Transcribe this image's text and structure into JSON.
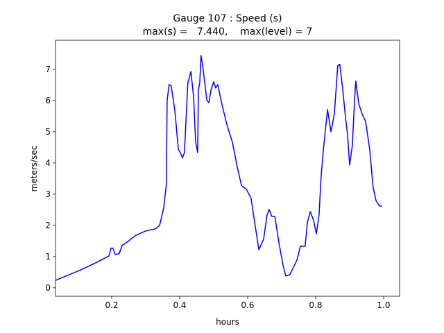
{
  "chart_data": {
    "type": "line",
    "title": "Gauge 107 : Speed (s)",
    "subtitle": "max(s) =   7.440,    max(level) = 7",
    "x_label": "hours",
    "y_label": "meters/sec",
    "x": [
      0.035,
      0.106,
      0.157,
      0.192,
      0.198,
      0.204,
      0.21,
      0.222,
      0.231,
      0.249,
      0.269,
      0.3,
      0.329,
      0.341,
      0.353,
      0.361,
      0.363,
      0.369,
      0.375,
      0.386,
      0.396,
      0.402,
      0.408,
      0.414,
      0.424,
      0.433,
      0.441,
      0.447,
      0.453,
      0.455,
      0.459,
      0.463,
      0.469,
      0.48,
      0.486,
      0.492,
      0.5,
      0.506,
      0.512,
      0.524,
      0.539,
      0.555,
      0.569,
      0.582,
      0.596,
      0.61,
      0.622,
      0.633,
      0.647,
      0.657,
      0.663,
      0.671,
      0.68,
      0.692,
      0.704,
      0.712,
      0.724,
      0.745,
      0.755,
      0.769,
      0.776,
      0.784,
      0.794,
      0.802,
      0.81,
      0.816,
      0.824,
      0.835,
      0.845,
      0.855,
      0.865,
      0.871,
      0.88,
      0.888,
      0.894,
      0.9,
      0.908,
      0.914,
      0.918,
      0.927,
      0.937,
      0.947,
      0.959,
      0.969,
      0.978,
      0.988,
      0.996
    ],
    "series": [
      {
        "name": "speed",
        "color": "#0000ff",
        "values": [
          0.24,
          0.56,
          0.82,
          1.02,
          1.27,
          1.27,
          1.07,
          1.09,
          1.36,
          1.49,
          1.67,
          1.82,
          1.89,
          2.0,
          2.56,
          3.33,
          6.0,
          6.51,
          6.47,
          5.67,
          4.44,
          4.33,
          4.16,
          4.33,
          6.56,
          6.93,
          6.11,
          4.67,
          4.33,
          6.33,
          6.56,
          7.44,
          7.0,
          6.0,
          5.93,
          6.33,
          6.6,
          6.4,
          6.51,
          5.89,
          5.22,
          4.67,
          3.89,
          3.27,
          3.16,
          2.87,
          2.0,
          1.22,
          1.56,
          2.33,
          2.51,
          2.29,
          2.29,
          1.44,
          0.73,
          0.38,
          0.42,
          0.89,
          1.33,
          1.33,
          2.11,
          2.44,
          2.16,
          1.73,
          2.33,
          3.56,
          4.56,
          5.71,
          5.0,
          5.56,
          7.11,
          7.16,
          6.33,
          5.44,
          4.89,
          3.93,
          4.56,
          5.89,
          6.62,
          5.89,
          5.56,
          5.33,
          4.44,
          3.22,
          2.78,
          2.62,
          2.62
        ]
      }
    ],
    "xlim": [
      0.0347,
      1.047
    ],
    "ylim": [
      -0.27,
      7.93
    ],
    "xticks": [
      {
        "value": 0.2,
        "label": "0.2"
      },
      {
        "value": 0.4,
        "label": "0.4"
      },
      {
        "value": 0.6,
        "label": "0.6"
      },
      {
        "value": 0.8,
        "label": "0.8"
      },
      {
        "value": 1.0,
        "label": "1.0"
      }
    ],
    "yticks": [
      0,
      1,
      2,
      3,
      4,
      5,
      6,
      7
    ]
  }
}
